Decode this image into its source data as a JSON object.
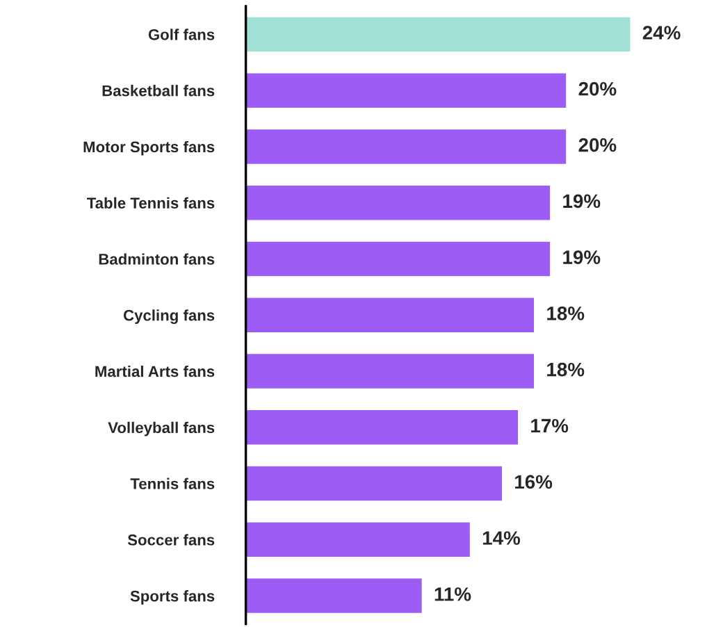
{
  "chart_data": {
    "type": "bar",
    "orientation": "horizontal",
    "categories": [
      "Golf fans",
      "Basketball fans",
      "Motor Sports fans",
      "Table Tennis fans",
      "Badminton fans",
      "Cycling fans",
      "Martial Arts fans",
      "Volleyball fans",
      "Tennis fans",
      "Soccer fans",
      "Sports fans"
    ],
    "values": [
      24,
      20,
      20,
      19,
      19,
      18,
      18,
      17,
      16,
      14,
      11
    ],
    "colors": [
      "#a0e0d5",
      "#9d5cf5",
      "#9d5cf5",
      "#9d5cf5",
      "#9d5cf5",
      "#9d5cf5",
      "#9d5cf5",
      "#9d5cf5",
      "#9d5cf5",
      "#9d5cf5",
      "#9d5cf5"
    ],
    "value_labels": [
      "24%",
      "20%",
      "20%",
      "19%",
      "19%",
      "18%",
      "18%",
      "17%",
      "16%",
      "14%",
      "11%"
    ],
    "grid": false,
    "legend": false
  }
}
